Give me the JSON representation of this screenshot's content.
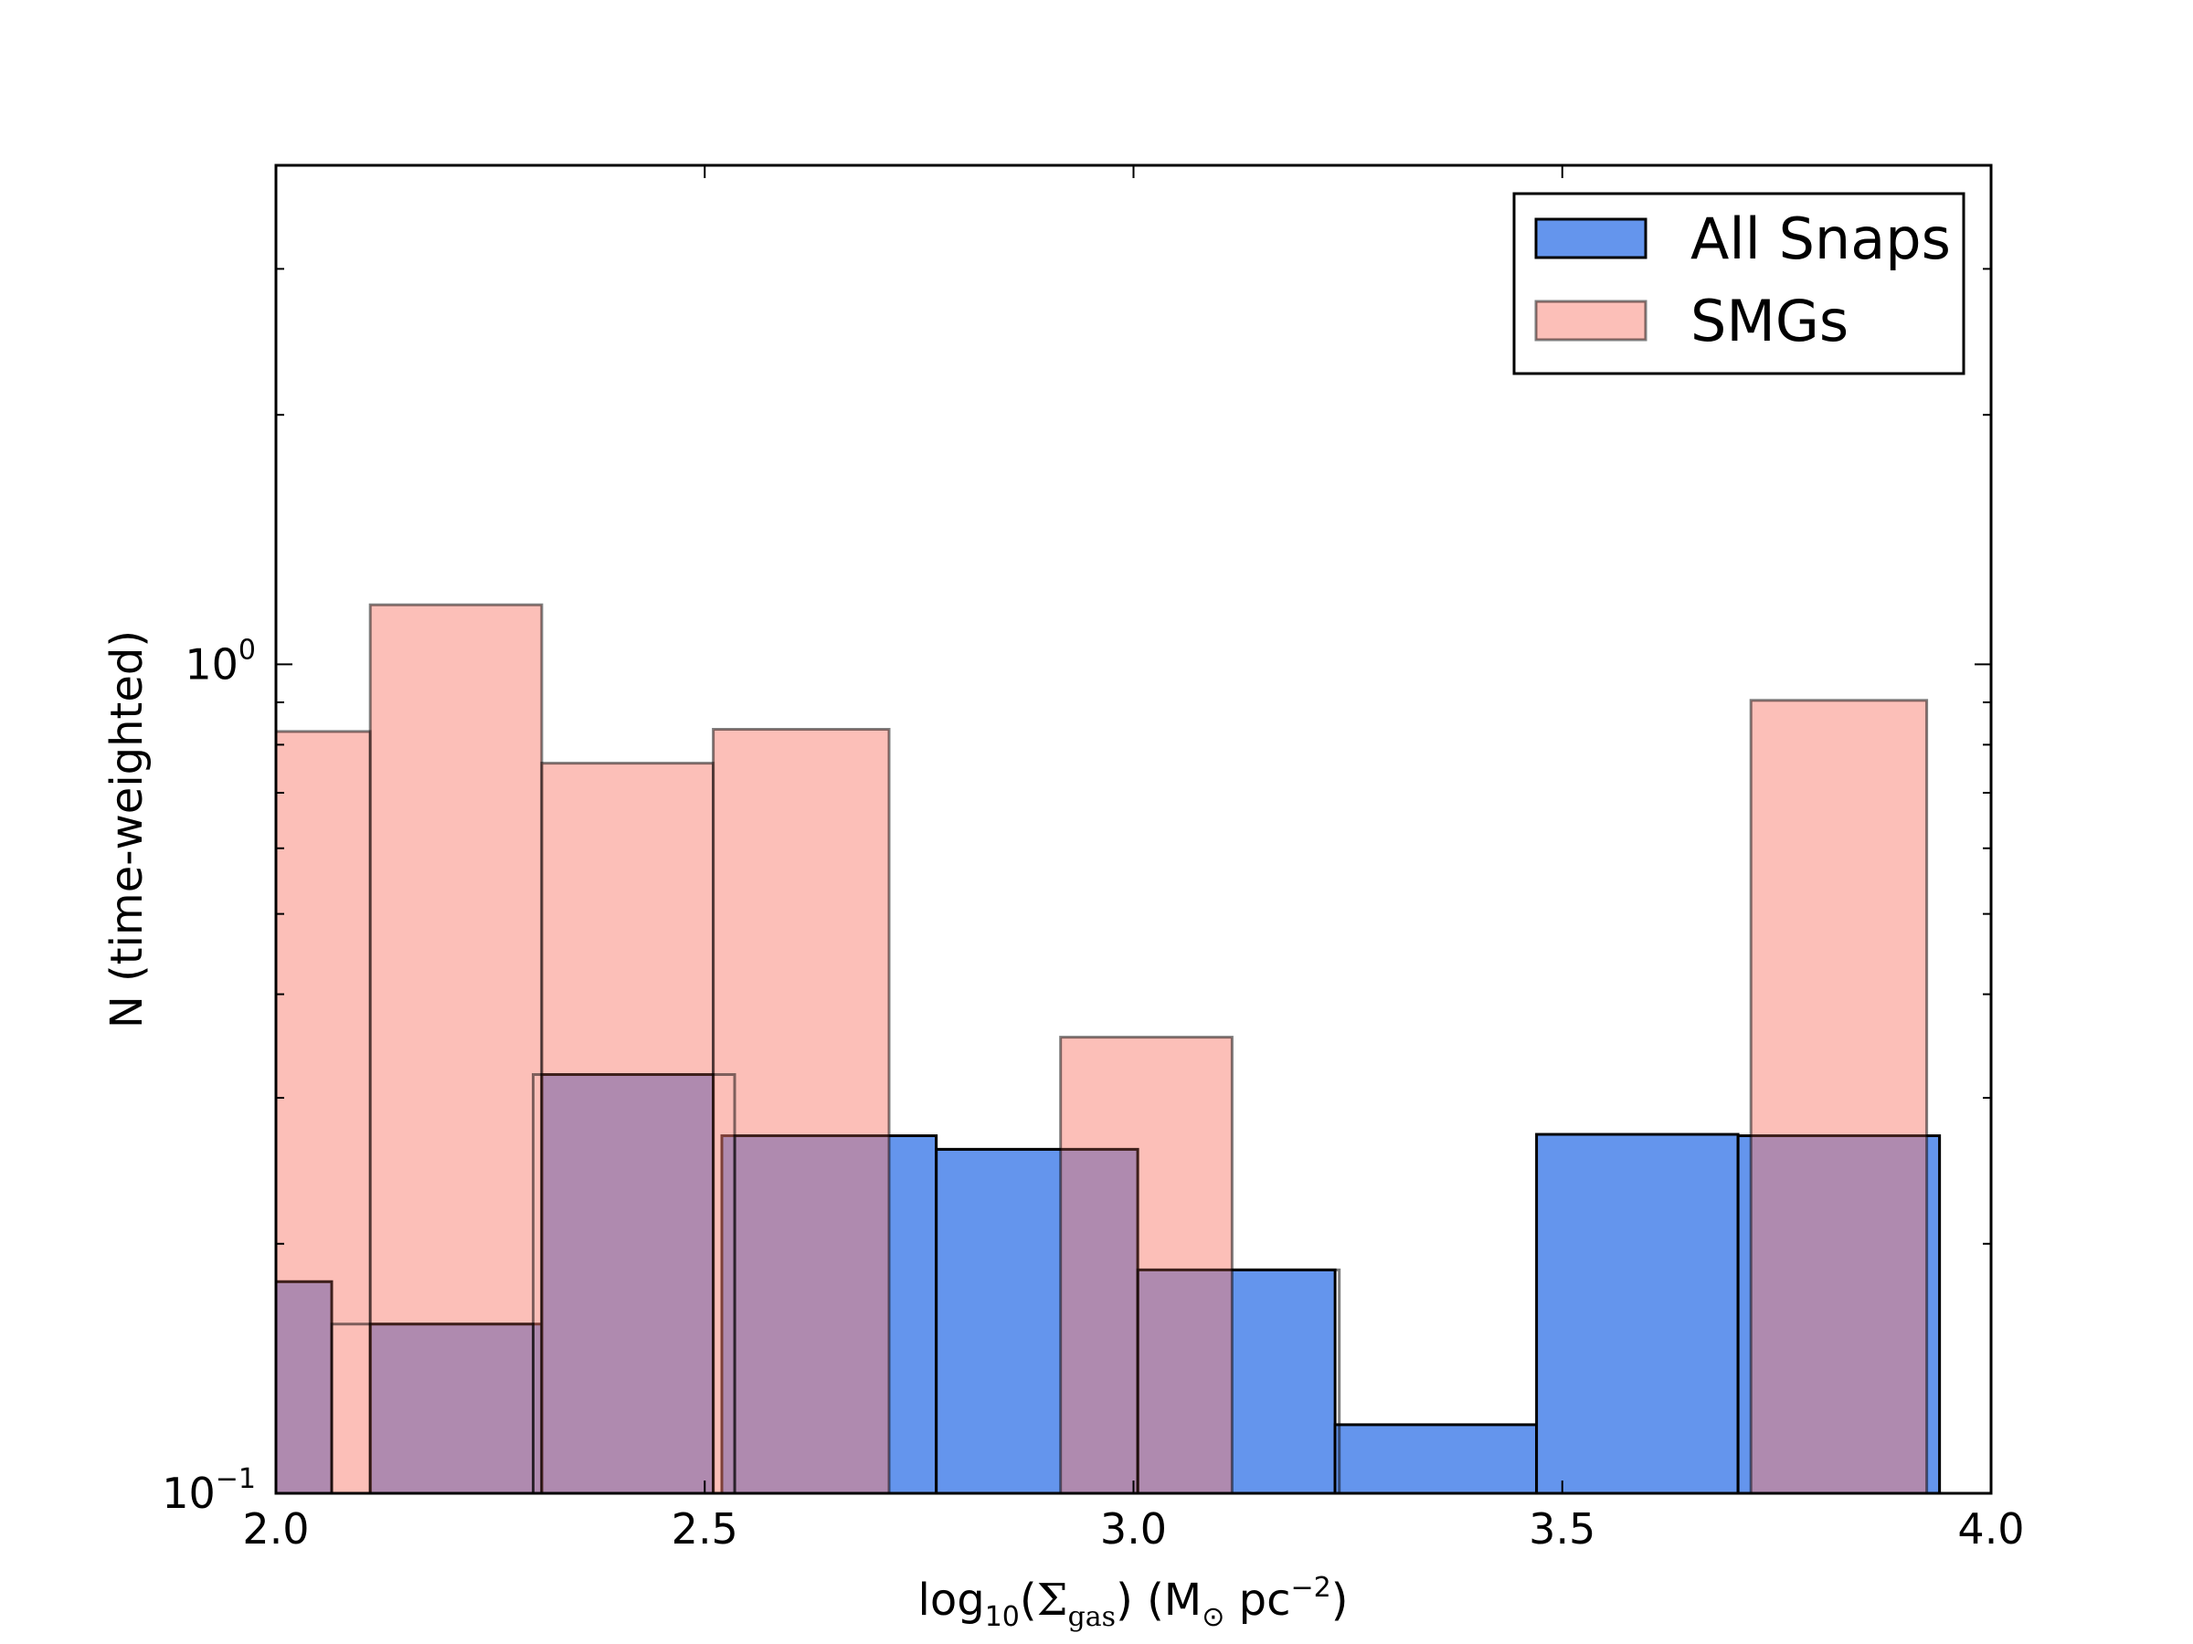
{
  "chart_data": {
    "type": "histogram",
    "xscale": "linear",
    "yscale": "log",
    "xlim": [
      2.0,
      4.0
    ],
    "ylim": [
      0.1,
      4.0
    ],
    "xlabel": {
      "base": "log",
      "base_sub": "10",
      "open": "(",
      "symbol": "Σ",
      "symbol_sub": "gas",
      "close": ")",
      "unit_open": " (M",
      "unit_sub": "⊙",
      "unit_mid": " pc",
      "unit_sup": "−2",
      "unit_close": ")"
    },
    "ylabel": "N (time-weighted)",
    "xticks": [
      {
        "value": 2.0,
        "label": "2.0"
      },
      {
        "value": 2.5,
        "label": "2.5"
      },
      {
        "value": 3.0,
        "label": "3.0"
      },
      {
        "value": 3.5,
        "label": "3.5"
      },
      {
        "value": 4.0,
        "label": "4.0"
      }
    ],
    "yticks": [
      {
        "value": 0.1,
        "base": "10",
        "exp": "−1"
      },
      {
        "value": 1.0,
        "base": "10",
        "exp": "0"
      }
    ],
    "legend": {
      "position": "top-right"
    },
    "series": [
      {
        "name": "All Snaps",
        "color": "#6495ed",
        "edge": "#000000",
        "alpha": 1.0,
        "bins": [
          {
            "x0": 2.0,
            "x1": 2.065,
            "value": 0.18
          },
          {
            "x0": 2.11,
            "x1": 2.31,
            "value": 0.16
          },
          {
            "x0": 2.31,
            "x1": 2.51,
            "value": 0.32
          },
          {
            "x0": 2.52,
            "x1": 2.77,
            "value": 0.27
          },
          {
            "x0": 2.77,
            "x1": 3.005,
            "value": 0.26
          },
          {
            "x0": 3.005,
            "x1": 3.235,
            "value": 0.186
          },
          {
            "x0": 3.235,
            "x1": 3.47,
            "value": 0.121
          },
          {
            "x0": 3.47,
            "x1": 3.705,
            "value": 0.271
          },
          {
            "x0": 3.705,
            "x1": 3.94,
            "value": 0.27
          }
        ]
      },
      {
        "name": "SMGs",
        "color": "#fa8072",
        "edge": "#000000",
        "alpha": 0.5,
        "bins": [
          {
            "x0": 2.0,
            "x1": 2.11,
            "value": 0.83
          },
          {
            "x0": 2.11,
            "x1": 2.31,
            "value": 1.18
          },
          {
            "x0": 2.31,
            "x1": 2.51,
            "value": 0.76
          },
          {
            "x0": 2.51,
            "x1": 2.715,
            "value": 0.835
          },
          {
            "x0": 2.915,
            "x1": 3.115,
            "value": 0.355
          },
          {
            "x0": 3.72,
            "x1": 3.925,
            "value": 0.905
          }
        ]
      },
      {
        "name": "",
        "color": "#7a3030",
        "edge": "#000000",
        "alpha": 0.0,
        "bins": [
          {
            "x0": 2.0,
            "x1": 2.065,
            "value": 0.18
          },
          {
            "x0": 2.065,
            "x1": 2.3,
            "value": 0.16
          },
          {
            "x0": 2.3,
            "x1": 2.535,
            "value": 0.32
          },
          {
            "x0": 2.535,
            "x1": 2.77,
            "value": 0.27
          },
          {
            "x0": 2.77,
            "x1": 3.005,
            "value": 0.26
          },
          {
            "x0": 3.005,
            "x1": 3.24,
            "value": 0.186
          },
          {
            "x0": 3.705,
            "x1": 3.94,
            "value": 0.27
          }
        ]
      }
    ]
  }
}
